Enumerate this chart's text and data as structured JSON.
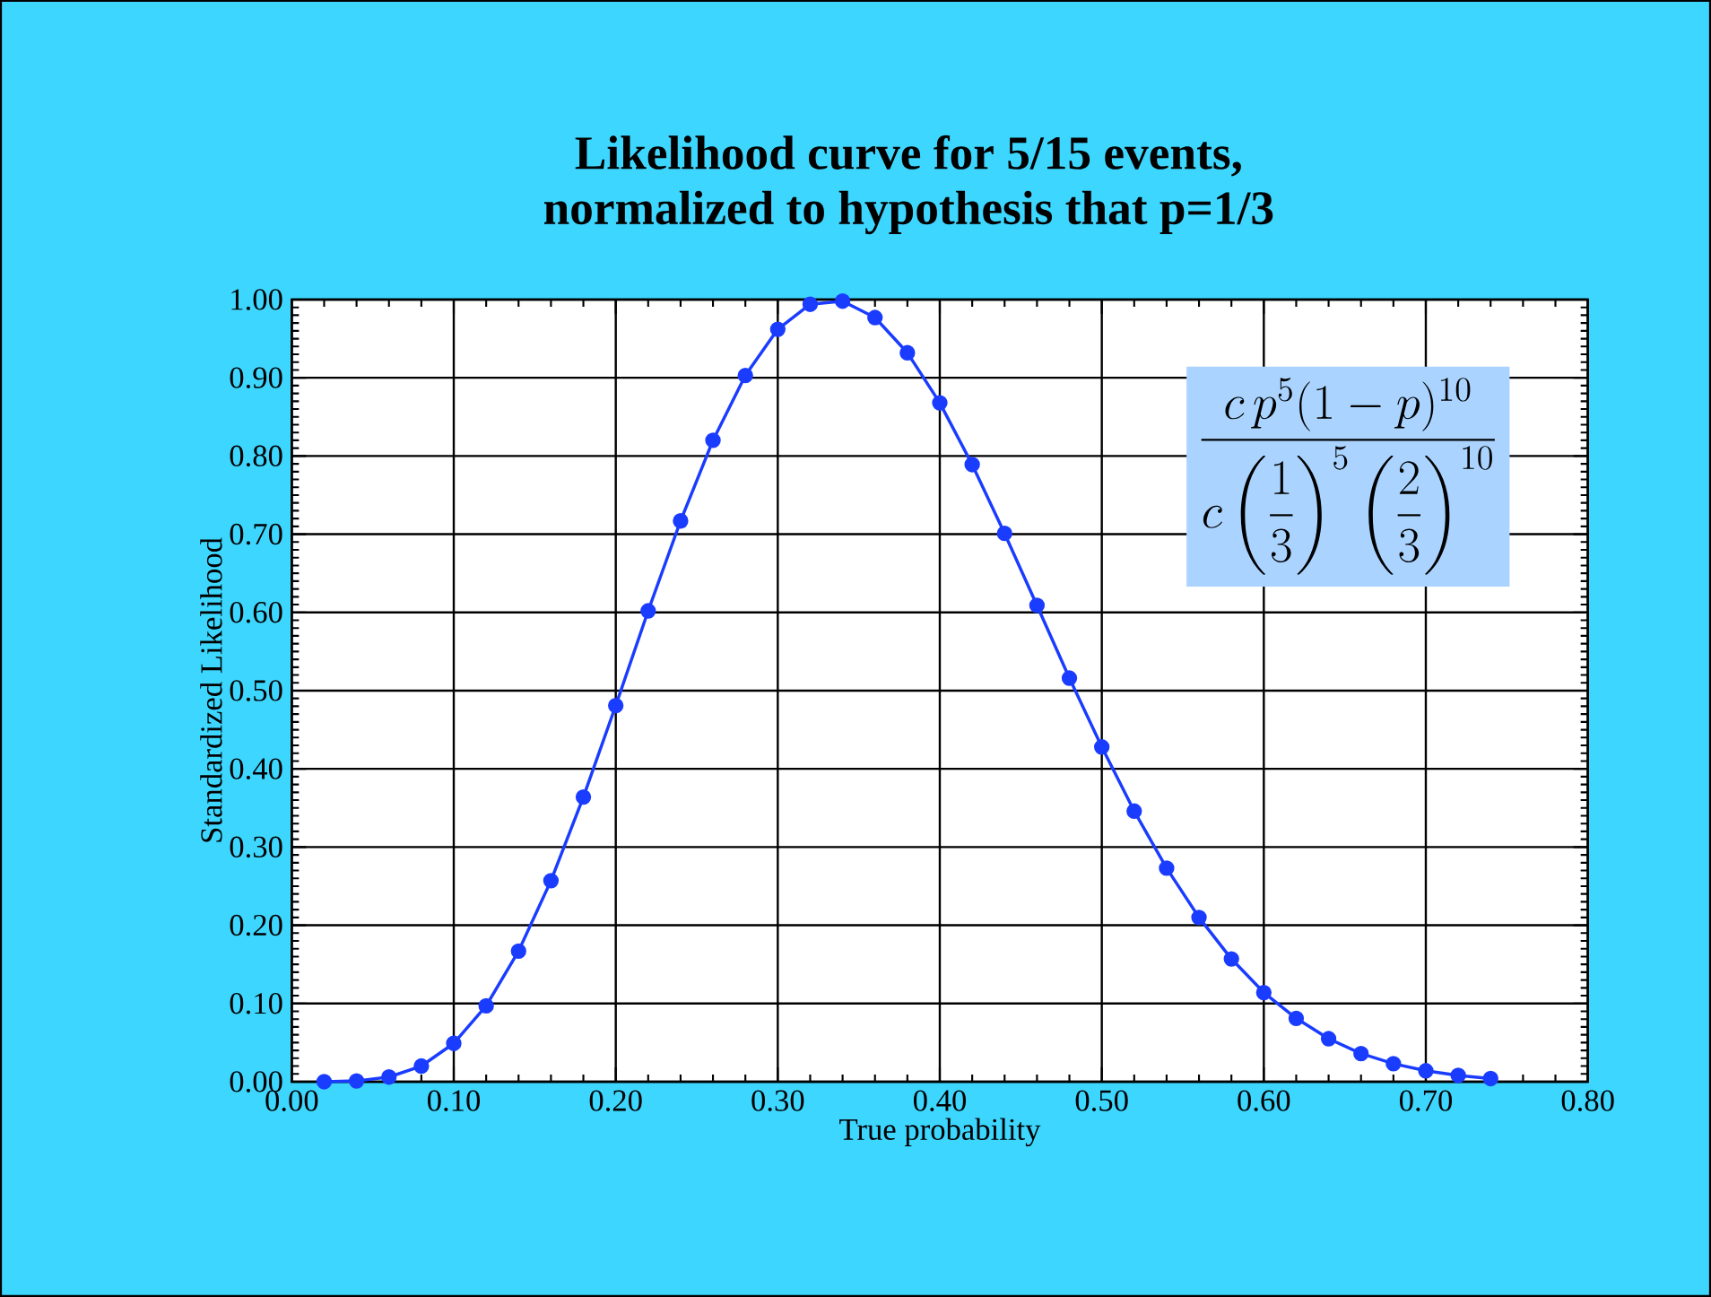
{
  "chart_data": {
    "type": "line",
    "title": "Likelihood curve for 5/15 events,\nnormalized to hypothesis that p=1/3",
    "xlabel": "True probability",
    "ylabel": "Standardized Likelihood",
    "x": [
      0.02,
      0.04,
      0.06,
      0.08,
      0.1,
      0.12,
      0.14,
      0.16,
      0.18,
      0.2,
      0.22,
      0.24,
      0.26,
      0.28,
      0.3,
      0.32,
      0.34,
      0.36,
      0.38,
      0.4,
      0.42,
      0.44,
      0.46,
      0.48,
      0.5,
      0.52,
      0.54,
      0.56,
      0.58,
      0.6,
      0.62,
      0.64,
      0.66,
      0.68,
      0.7,
      0.72,
      0.74
    ],
    "series": [
      {
        "color": "#1a3cff",
        "values": [
          0.0,
          0.001,
          0.006,
          0.02,
          0.049,
          0.097,
          0.167,
          0.257,
          0.364,
          0.481,
          0.602,
          0.717,
          0.82,
          0.903,
          0.962,
          0.994,
          0.998,
          0.977,
          0.932,
          0.868,
          0.789,
          0.701,
          0.609,
          0.516,
          0.428,
          0.346,
          0.273,
          0.21,
          0.157,
          0.114,
          0.081,
          0.055,
          0.036,
          0.023,
          0.014,
          0.008,
          0.004
        ]
      }
    ],
    "xlim": [
      0,
      0.8
    ],
    "ylim": [
      0,
      1
    ],
    "xticks": [
      {
        "value": 0,
        "label": "0.00"
      },
      {
        "value": 0.1,
        "label": "0.10"
      },
      {
        "value": 0.2,
        "label": "0.20"
      },
      {
        "value": 0.3,
        "label": "0.30"
      },
      {
        "value": 0.4,
        "label": "0.40"
      },
      {
        "value": 0.5,
        "label": "0.50"
      },
      {
        "value": 0.6,
        "label": "0.60"
      },
      {
        "value": 0.7,
        "label": "0.70"
      },
      {
        "value": 0.8,
        "label": "0.80"
      }
    ],
    "yticks": [
      {
        "value": 0,
        "label": "0.00"
      },
      {
        "value": 0.1,
        "label": "0.10"
      },
      {
        "value": 0.2,
        "label": "0.20"
      },
      {
        "value": 0.3,
        "label": "0.30"
      },
      {
        "value": 0.4,
        "label": "0.40"
      },
      {
        "value": 0.5,
        "label": "0.50"
      },
      {
        "value": 0.6,
        "label": "0.60"
      },
      {
        "value": 0.7,
        "label": "0.70"
      },
      {
        "value": 0.8,
        "label": "0.80"
      },
      {
        "value": 0.9,
        "label": "0.90"
      },
      {
        "value": 1.0,
        "label": "1.00"
      }
    ],
    "grid": true,
    "marker": "circle",
    "line_style": "solid",
    "annotations": [
      "\\frac{c\\,p^{5}(1-p)^{10}}{c\\left(\\dfrac{1}{3}\\right)^{5}\\left(\\dfrac{2}{3}\\right)^{10}}"
    ]
  }
}
